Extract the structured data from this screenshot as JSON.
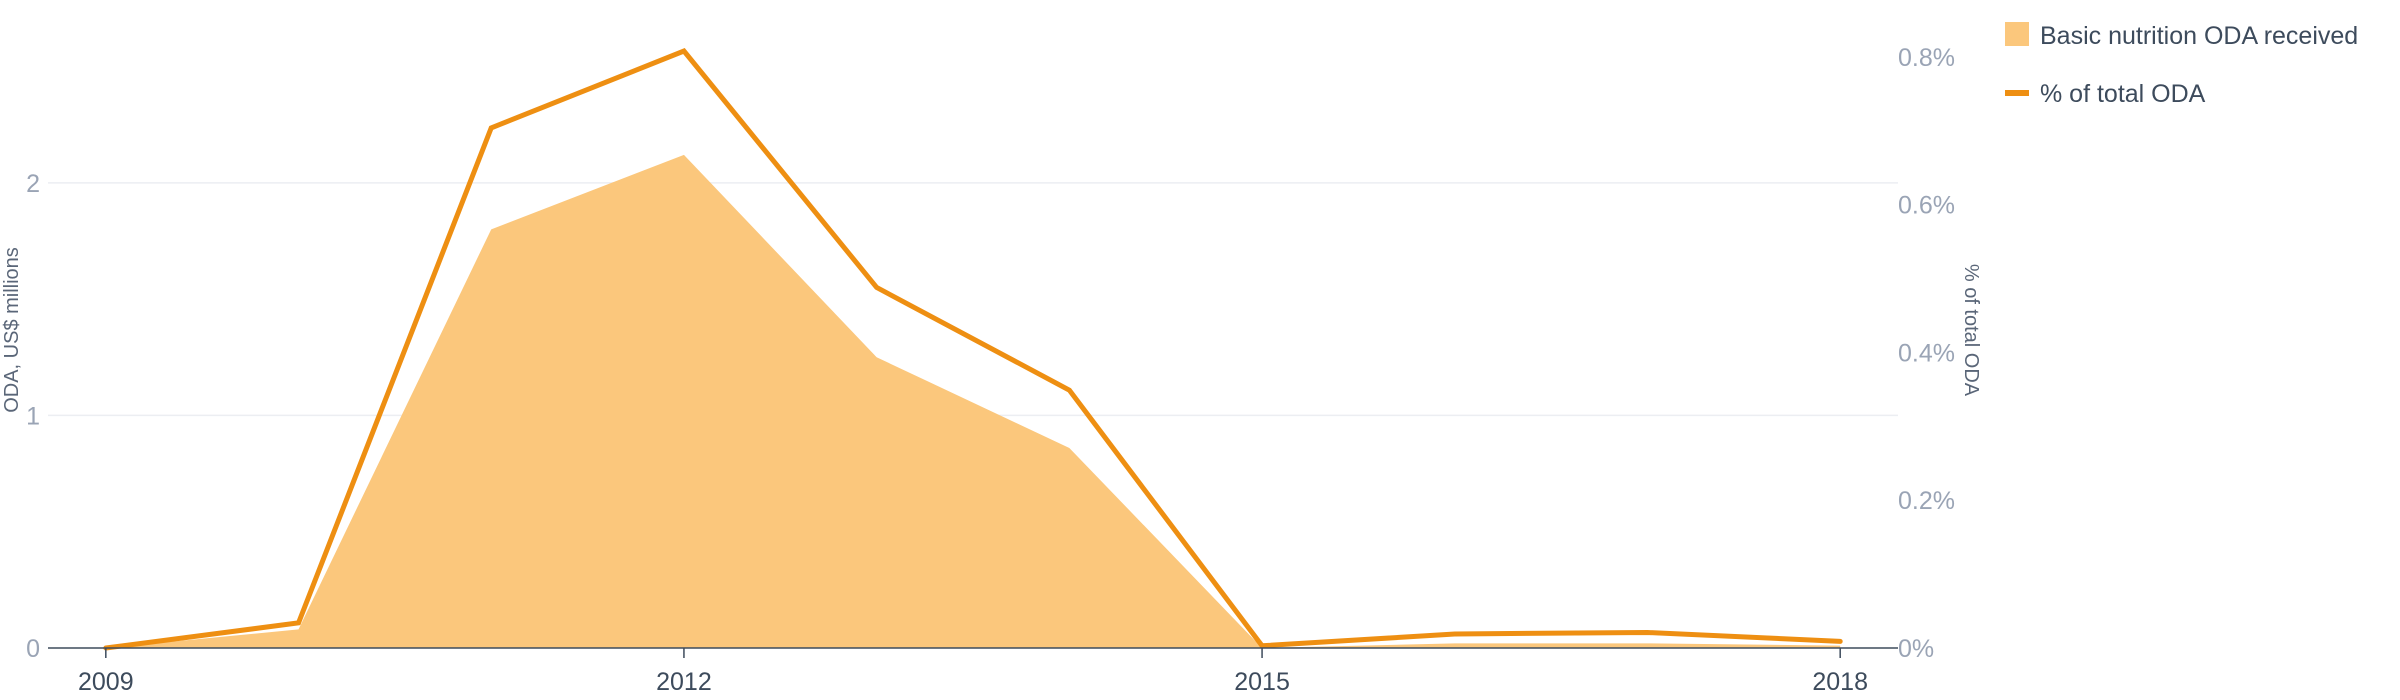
{
  "chart_data": {
    "type": "area",
    "x": [
      2009,
      2010,
      2011,
      2012,
      2013,
      2014,
      2015,
      2016,
      2017,
      2018
    ],
    "x_ticks": [
      "2009",
      "2012",
      "2015",
      "2018"
    ],
    "xlim": [
      2008.7,
      2018.3
    ],
    "series": [
      {
        "name": "Basic nutrition ODA received",
        "type": "area",
        "axis": "left",
        "color": "#fbc77c",
        "values": [
          0,
          0.08,
          1.8,
          2.12,
          1.25,
          0.86,
          0.0,
          0.02,
          0.02,
          0.01
        ]
      },
      {
        "name": "% of total ODA",
        "type": "line",
        "axis": "right",
        "color": "#ee8f12",
        "unit": "%",
        "values": [
          0.0,
          0.034,
          0.704,
          0.808,
          0.488,
          0.349,
          0.003,
          0.019,
          0.021,
          0.009
        ]
      }
    ],
    "y_left": {
      "label": "ODA, US$ millions",
      "ticks": [
        "0",
        "1",
        "2"
      ],
      "tick_values": [
        0,
        1,
        2
      ],
      "ylim": [
        0,
        2.7
      ]
    },
    "y_right": {
      "label": "% of total ODA",
      "ticks": [
        "0%",
        "0.2%",
        "0.4%",
        "0.6%",
        "0.8%"
      ],
      "tick_values": [
        0,
        0.2,
        0.4,
        0.6,
        0.8
      ],
      "ylim": [
        0,
        0.85
      ]
    },
    "grid": true,
    "legend_position": "top-right"
  }
}
